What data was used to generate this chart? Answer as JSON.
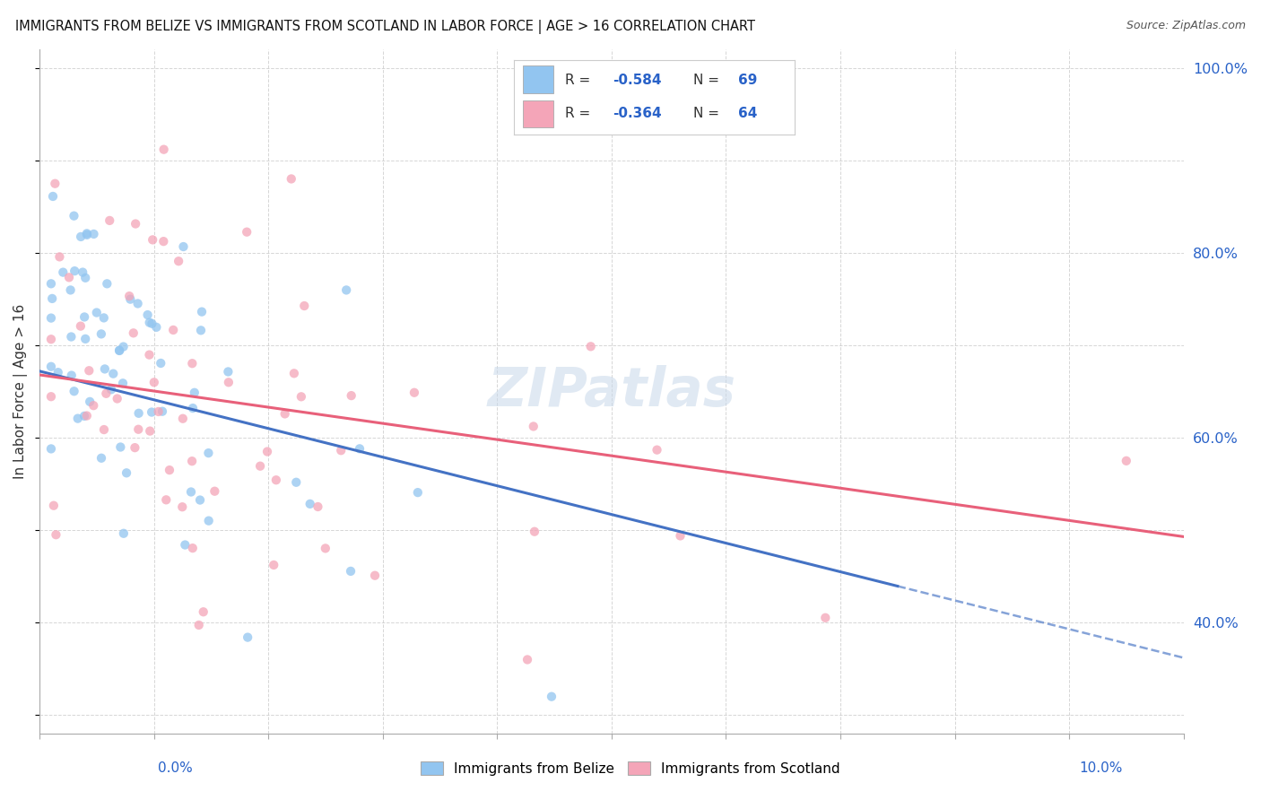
{
  "title": "IMMIGRANTS FROM BELIZE VS IMMIGRANTS FROM SCOTLAND IN LABOR FORCE | AGE > 16 CORRELATION CHART",
  "source": "Source: ZipAtlas.com",
  "ylabel": "In Labor Force | Age > 16",
  "belize_color": "#92C5F0",
  "scotland_color": "#F4A5B8",
  "belize_line_color": "#4472C4",
  "scotland_line_color": "#E8607A",
  "watermark_color": "#C8D8EA",
  "xlim": [
    0.0,
    0.1
  ],
  "ylim": [
    0.28,
    1.02
  ],
  "belize_R": -0.584,
  "belize_N": 69,
  "scotland_R": -0.364,
  "scotland_N": 64,
  "right_yticks": [
    0.4,
    0.6,
    0.8,
    1.0
  ],
  "grid_color": "#CCCCCC",
  "axis_color": "#AAAAAA",
  "text_color": "#333333",
  "blue_text_color": "#2962C8"
}
